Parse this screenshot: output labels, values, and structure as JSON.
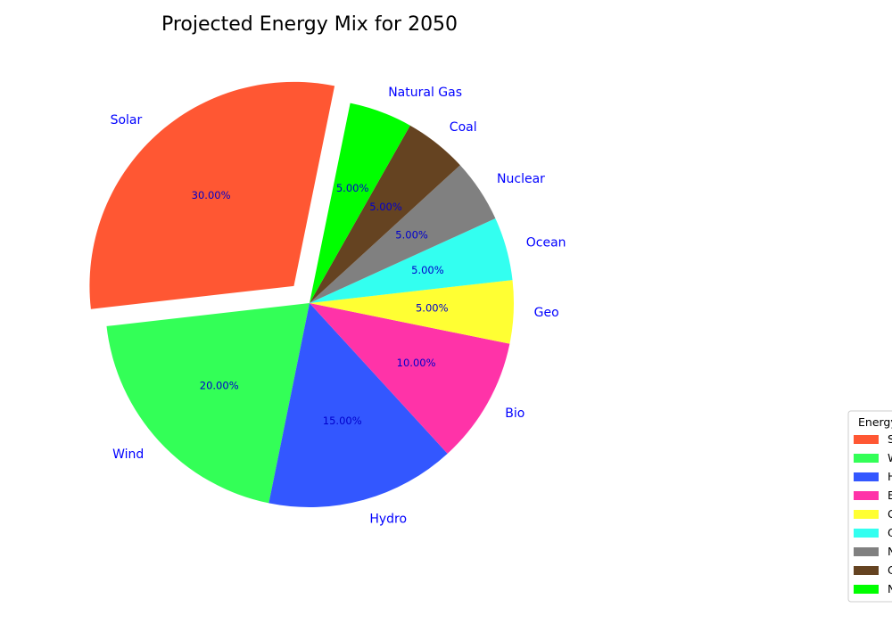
{
  "chart_data": {
    "type": "pie",
    "title": "Projected Energy Mix for 2050",
    "slices": [
      {
        "label": "Solar",
        "value": 30,
        "pct_label": "30.00%",
        "color": "#ff5733",
        "explode": true
      },
      {
        "label": "Wind",
        "value": 20,
        "pct_label": "20.00%",
        "color": "#33ff57",
        "explode": false
      },
      {
        "label": "Hydro",
        "value": 15,
        "pct_label": "15.00%",
        "color": "#3357ff",
        "explode": false
      },
      {
        "label": "Bio",
        "value": 10,
        "pct_label": "10.00%",
        "color": "#ff33a8",
        "explode": false
      },
      {
        "label": "Geo",
        "value": 5,
        "pct_label": "5.00%",
        "color": "#ffff33",
        "explode": false
      },
      {
        "label": "Ocean",
        "value": 5,
        "pct_label": "5.00%",
        "color": "#33fff0",
        "explode": false
      },
      {
        "label": "Nuclear",
        "value": 5,
        "pct_label": "5.00%",
        "color": "#808080",
        "explode": false
      },
      {
        "label": "Coal",
        "value": 5,
        "pct_label": "5.00%",
        "color": "#654321",
        "explode": false
      },
      {
        "label": "Natural Gas",
        "value": 5,
        "pct_label": "5.00%",
        "color": "#00ff00",
        "explode": false
      }
    ],
    "legend": {
      "title": "Energy Sources",
      "placement": "lower-right"
    },
    "label_color": "#0000ff"
  }
}
